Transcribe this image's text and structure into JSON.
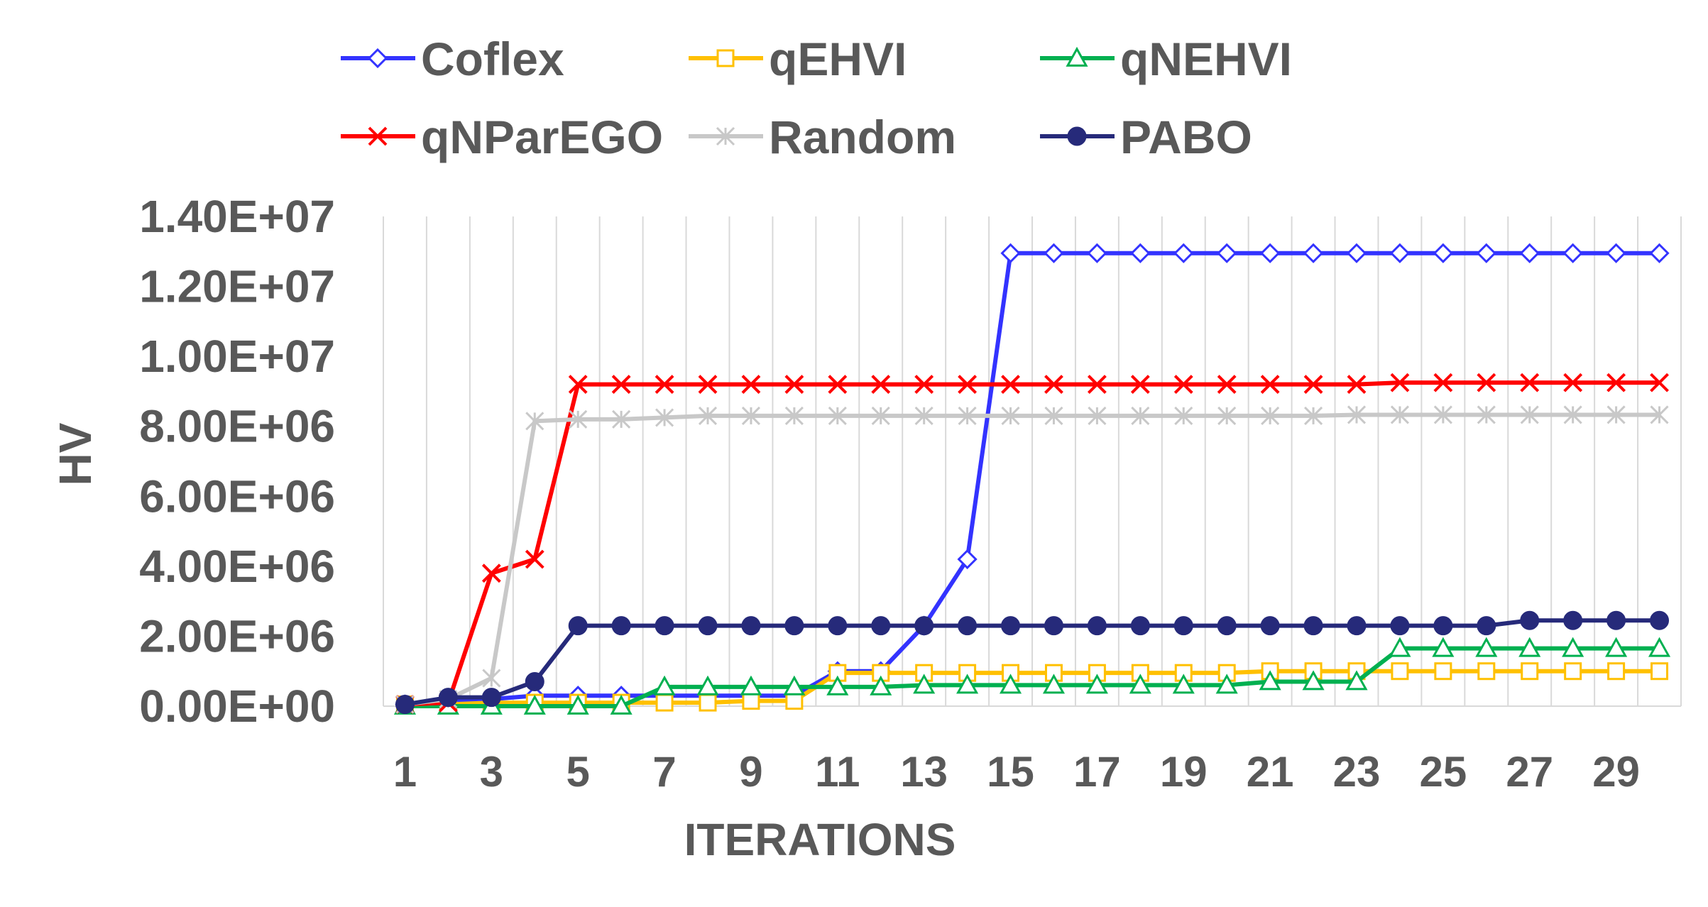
{
  "chart_data": {
    "type": "line",
    "title": "",
    "xlabel": "ITERATIONS",
    "ylabel": "HV",
    "ylim": [
      0,
      14000000
    ],
    "yticks": [
      0,
      2000000,
      4000000,
      6000000,
      8000000,
      10000000,
      12000000,
      14000000
    ],
    "ytick_labels": [
      "0.00E+00",
      "2.00E+06",
      "4.00E+06",
      "6.00E+06",
      "8.00E+06",
      "1.00E+07",
      "1.20E+07",
      "1.40E+07"
    ],
    "x": [
      1,
      2,
      3,
      4,
      5,
      6,
      7,
      8,
      9,
      10,
      11,
      12,
      13,
      14,
      15,
      16,
      17,
      18,
      19,
      20,
      21,
      22,
      23,
      24,
      25,
      26,
      27,
      28,
      29,
      30
    ],
    "xtick_labels": [
      "1",
      "3",
      "5",
      "7",
      "9",
      "11",
      "13",
      "15",
      "17",
      "19",
      "21",
      "23",
      "25",
      "27",
      "29"
    ],
    "grid": "vertical",
    "legend": "top",
    "series": [
      {
        "name": "Coflex",
        "color": "#3333ff",
        "marker": "diamond-open",
        "values": [
          50000,
          150000,
          200000,
          300000,
          300000,
          300000,
          300000,
          300000,
          300000,
          300000,
          1000000,
          1000000,
          2300000,
          4200000,
          12950000,
          12950000,
          12950000,
          12950000,
          12950000,
          12950000,
          12950000,
          12950000,
          12950000,
          12950000,
          12950000,
          12950000,
          12950000,
          12950000,
          12950000,
          12950000
        ]
      },
      {
        "name": "qEHVI",
        "color": "#ffc000",
        "marker": "square-open",
        "values": [
          50000,
          50000,
          100000,
          100000,
          100000,
          100000,
          100000,
          100000,
          150000,
          150000,
          950000,
          950000,
          950000,
          950000,
          950000,
          950000,
          950000,
          950000,
          950000,
          950000,
          1000000,
          1000000,
          1000000,
          1000000,
          1000000,
          1000000,
          1000000,
          1000000,
          1000000,
          1000000
        ]
      },
      {
        "name": "qNEHVI",
        "color": "#00b050",
        "marker": "triangle-open",
        "values": [
          0,
          0,
          0,
          0,
          0,
          0,
          550000,
          550000,
          550000,
          550000,
          550000,
          550000,
          600000,
          600000,
          600000,
          600000,
          600000,
          600000,
          600000,
          600000,
          700000,
          700000,
          700000,
          1650000,
          1650000,
          1650000,
          1650000,
          1650000,
          1650000,
          1650000
        ]
      },
      {
        "name": "qNParEGO",
        "color": "#ff0000",
        "marker": "x",
        "values": [
          50000,
          100000,
          3800000,
          4200000,
          9200000,
          9200000,
          9200000,
          9200000,
          9200000,
          9200000,
          9200000,
          9200000,
          9200000,
          9200000,
          9200000,
          9200000,
          9200000,
          9200000,
          9200000,
          9200000,
          9200000,
          9200000,
          9200000,
          9250000,
          9250000,
          9250000,
          9250000,
          9250000,
          9250000,
          9250000
        ]
      },
      {
        "name": "Random",
        "color": "#c8c8c8",
        "marker": "star",
        "values": [
          50000,
          200000,
          800000,
          8150000,
          8200000,
          8200000,
          8250000,
          8300000,
          8300000,
          8300000,
          8300000,
          8300000,
          8300000,
          8300000,
          8300000,
          8300000,
          8300000,
          8300000,
          8300000,
          8300000,
          8300000,
          8300000,
          8330000,
          8330000,
          8330000,
          8330000,
          8330000,
          8330000,
          8330000,
          8330000
        ]
      },
      {
        "name": "PABO",
        "color": "#262a7a",
        "marker": "circle-filled",
        "values": [
          50000,
          250000,
          250000,
          700000,
          2300000,
          2300000,
          2300000,
          2300000,
          2300000,
          2300000,
          2300000,
          2300000,
          2300000,
          2300000,
          2300000,
          2300000,
          2300000,
          2300000,
          2300000,
          2300000,
          2300000,
          2300000,
          2300000,
          2300000,
          2300000,
          2300000,
          2450000,
          2450000,
          2450000,
          2450000
        ]
      }
    ]
  }
}
